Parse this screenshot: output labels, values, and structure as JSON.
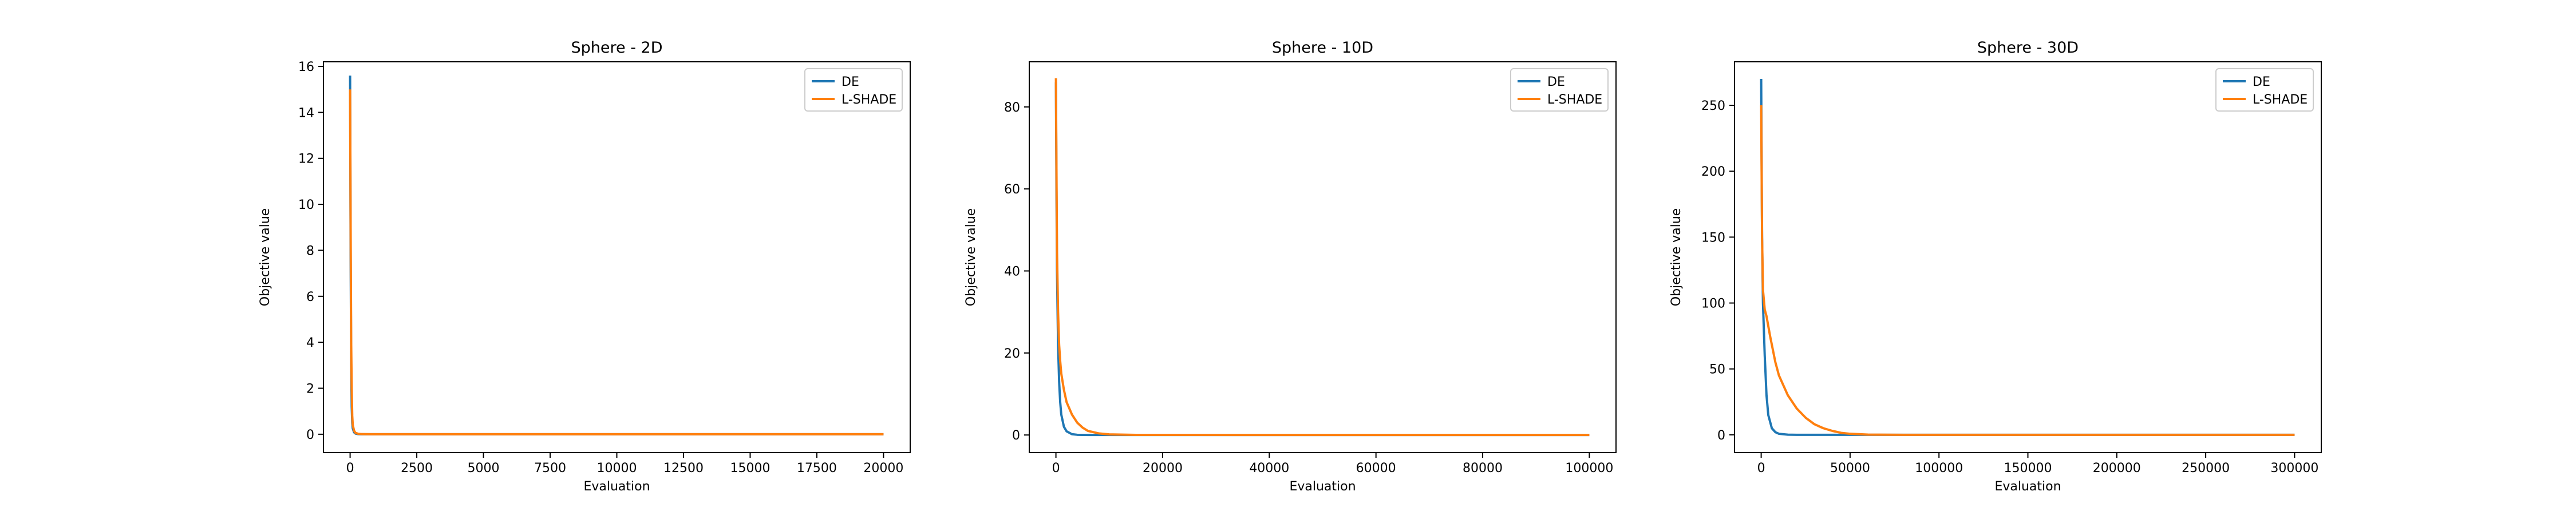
{
  "chart_data": [
    {
      "type": "line",
      "title": "Sphere - 2D",
      "xlabel": "Evaluation",
      "ylabel": "Objective value",
      "xlim": [
        -1000,
        21000
      ],
      "ylim": [
        -0.8,
        16.2
      ],
      "xticks": [
        0,
        2500,
        5000,
        7500,
        10000,
        12500,
        15000,
        17500,
        20000
      ],
      "yticks": [
        0,
        2,
        4,
        6,
        8,
        10,
        12,
        14,
        16
      ],
      "legend_position": "top-right",
      "grid": false,
      "series": [
        {
          "name": "DE",
          "color": "#1f77b4",
          "x": [
            0,
            20,
            40,
            60,
            80,
            100,
            150,
            200,
            300,
            400,
            600,
            800,
            1000,
            2000,
            5000,
            10000,
            15000,
            20000
          ],
          "y": [
            15.6,
            8.0,
            3.0,
            1.2,
            0.5,
            0.25,
            0.08,
            0.03,
            0.005,
            0.001,
            0,
            0,
            0,
            0,
            0,
            0,
            0,
            0
          ]
        },
        {
          "name": "L-SHADE",
          "color": "#ff7f0e",
          "x": [
            0,
            20,
            40,
            60,
            80,
            100,
            150,
            200,
            300,
            400,
            600,
            800,
            1000,
            2000,
            5000,
            10000,
            15000,
            20000
          ],
          "y": [
            15.0,
            9.0,
            4.0,
            2.0,
            0.8,
            0.4,
            0.15,
            0.06,
            0.02,
            0.008,
            0.002,
            0,
            0,
            0,
            0,
            0,
            0,
            0
          ]
        }
      ]
    },
    {
      "type": "line",
      "title": "Sphere - 10D",
      "xlabel": "Evaluation",
      "ylabel": "Objective value",
      "xlim": [
        -5000,
        105000
      ],
      "ylim": [
        -4.3,
        91
      ],
      "xticks": [
        0,
        20000,
        40000,
        60000,
        80000,
        100000
      ],
      "yticks": [
        0,
        20,
        40,
        60,
        80
      ],
      "legend_position": "top-right",
      "grid": false,
      "series": [
        {
          "name": "DE",
          "color": "#1f77b4",
          "x": [
            0,
            100,
            200,
            400,
            600,
            800,
            1000,
            1500,
            2000,
            3000,
            4000,
            6000,
            10000,
            50000,
            100000
          ],
          "y": [
            86,
            60,
            40,
            22,
            13,
            8,
            5,
            2,
            0.9,
            0.2,
            0.05,
            0.005,
            0,
            0,
            0
          ]
        },
        {
          "name": "L-SHADE",
          "color": "#ff7f0e",
          "x": [
            0,
            100,
            200,
            400,
            600,
            800,
            1000,
            1500,
            2000,
            3000,
            4000,
            5000,
            6000,
            8000,
            10000,
            15000,
            50000,
            100000
          ],
          "y": [
            87,
            65,
            45,
            30,
            22,
            18,
            15,
            11,
            8,
            5,
            3,
            1.8,
            1.0,
            0.4,
            0.15,
            0.02,
            0,
            0
          ]
        }
      ]
    },
    {
      "type": "line",
      "title": "Sphere - 30D",
      "xlabel": "Evaluation",
      "ylabel": "Objective value",
      "xlim": [
        -15000,
        315000
      ],
      "ylim": [
        -13.5,
        283
      ],
      "xticks": [
        0,
        50000,
        100000,
        150000,
        200000,
        250000,
        300000
      ],
      "yticks": [
        0,
        50,
        100,
        150,
        200,
        250
      ],
      "legend_position": "top-right",
      "grid": false,
      "series": [
        {
          "name": "DE",
          "color": "#1f77b4",
          "x": [
            0,
            500,
            1000,
            2000,
            3000,
            4000,
            6000,
            8000,
            10000,
            15000,
            20000,
            50000,
            300000
          ],
          "y": [
            270,
            150,
            100,
            60,
            30,
            15,
            5,
            2,
            0.8,
            0.1,
            0,
            0,
            0
          ]
        },
        {
          "name": "L-SHADE",
          "color": "#ff7f0e",
          "x": [
            0,
            500,
            1000,
            2000,
            3000,
            5000,
            8000,
            10000,
            15000,
            20000,
            25000,
            30000,
            35000,
            40000,
            45000,
            50000,
            60000,
            80000,
            300000
          ],
          "y": [
            250,
            150,
            110,
            95,
            90,
            75,
            55,
            45,
            30,
            20,
            13,
            8,
            5,
            3,
            1.5,
            0.8,
            0.2,
            0,
            0
          ]
        }
      ]
    }
  ]
}
